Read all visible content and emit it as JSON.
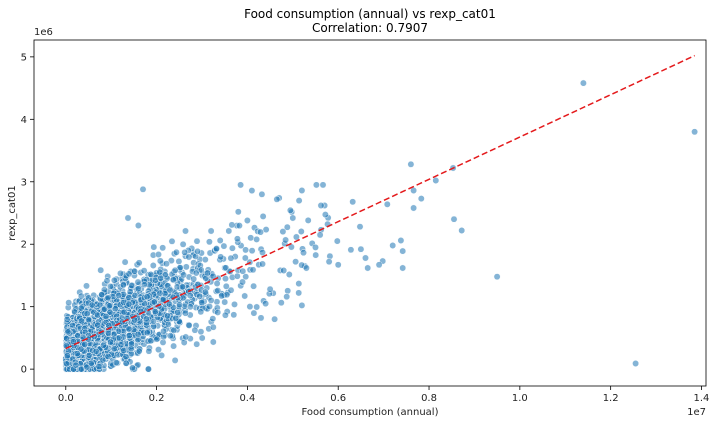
{
  "chart_data": {
    "type": "scatter",
    "title": "Food consumption (annual) vs rexp_cat01",
    "subtitle": "Correlation: 0.7907",
    "xlabel": "Food consumption (annual)",
    "ylabel": "rexp_cat01",
    "x_scale_label": "1e7",
    "y_scale_label": "1e6",
    "xlim": [
      -0.07,
      1.41
    ],
    "ylim": [
      -0.27,
      5.27
    ],
    "x_ticks": [
      0.0,
      0.2,
      0.4,
      0.6,
      0.8,
      1.0,
      1.2,
      1.4
    ],
    "x_tick_labels": [
      "0.0",
      "0.2",
      "0.4",
      "0.6",
      "0.8",
      "1.0",
      "1.2",
      "1.4"
    ],
    "y_ticks": [
      0,
      1,
      2,
      3,
      4,
      5
    ],
    "y_tick_labels": [
      "0",
      "1",
      "2",
      "3",
      "4",
      "5"
    ],
    "units_note": "x in units of 1e7, y in units of 1e6",
    "grid": false,
    "point_color": "#1f77b4",
    "trend_color": "#e41a1c",
    "trend_line": {
      "x": [
        0.0,
        1.385
      ],
      "y": [
        0.33,
        5.02
      ]
    },
    "cluster": {
      "description": "dense cloud of ~2500 households",
      "seed": 7,
      "count": 2400
    },
    "points_outliers": [
      [
        1.14,
        4.58
      ],
      [
        1.385,
        3.8
      ],
      [
        1.255,
        0.09
      ],
      [
        0.95,
        1.48
      ],
      [
        0.872,
        2.22
      ],
      [
        0.855,
        2.4
      ],
      [
        0.853,
        3.22
      ],
      [
        0.815,
        3.02
      ],
      [
        0.783,
        2.73
      ],
      [
        0.766,
        2.86
      ],
      [
        0.766,
        2.58
      ],
      [
        0.76,
        3.28
      ],
      [
        0.742,
        1.89
      ],
      [
        0.742,
        1.62
      ],
      [
        0.738,
        2.06
      ],
      [
        0.72,
        1.98
      ],
      [
        0.708,
        2.64
      ],
      [
        0.698,
        1.73
      ],
      [
        0.69,
        1.67
      ],
      [
        0.665,
        1.62
      ],
      [
        0.66,
        1.78
      ],
      [
        0.65,
        1.92
      ],
      [
        0.648,
        2.28
      ],
      [
        0.632,
        2.68
      ],
      [
        0.628,
        1.91
      ],
      [
        0.6,
        1.67
      ],
      [
        0.598,
        2.05
      ],
      [
        0.57,
        2.62
      ],
      [
        0.562,
        2.62
      ],
      [
        0.53,
        1.62
      ],
      [
        0.52,
        2.86
      ],
      [
        0.52,
        1.02
      ],
      [
        0.513,
        1.22
      ],
      [
        0.47,
        2.74
      ],
      [
        0.465,
        2.72
      ],
      [
        0.432,
        2.8
      ],
      [
        0.4,
        2.38
      ],
      [
        0.38,
        2.52
      ],
      [
        0.37,
        0.87
      ],
      [
        0.45,
        1.28
      ],
      [
        0.5,
        2.42
      ],
      [
        0.56,
        2.15
      ],
      [
        0.43,
        0.82
      ],
      [
        0.34,
        2.06
      ],
      [
        0.17,
        2.88
      ],
      [
        0.137,
        2.42
      ],
      [
        0.16,
        2.3
      ],
      [
        0.55,
        1.95
      ],
      [
        0.58,
        1.72
      ],
      [
        0.48,
        1.58
      ],
      [
        0.46,
        0.8
      ],
      [
        0.44,
        1.05
      ]
    ]
  }
}
